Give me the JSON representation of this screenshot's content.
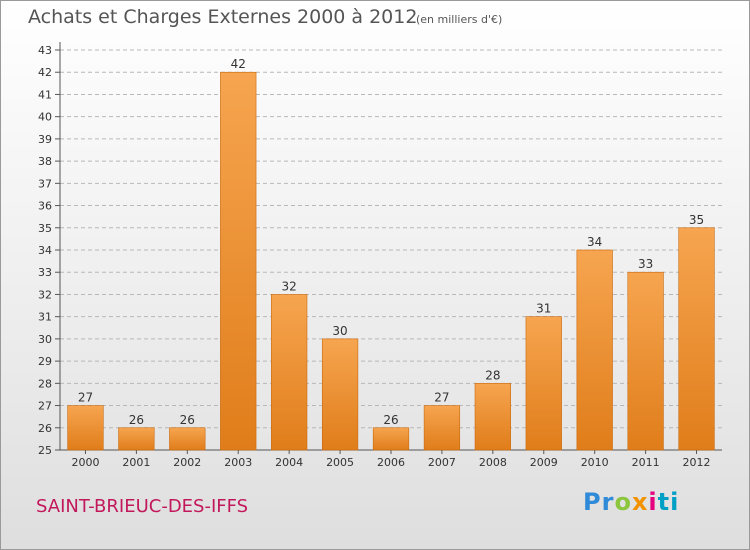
{
  "title": "Achats et Charges Externes 2000 à 2012",
  "unit": "(en milliers d'€)",
  "commune": "SAINT-BRIEUC-DES-IFFS",
  "brand": {
    "parts": [
      "Pr",
      "o",
      "x",
      "i",
      "ti"
    ]
  },
  "colors": {
    "bar_light": "#f6a550",
    "bar_dark": "#e07d1a",
    "bar_edge": "#c96a10",
    "commune_text": "#c2185b"
  },
  "chart_data": {
    "type": "bar",
    "title": "Achats et Charges Externes 2000 à 2012",
    "subtitle": "(en milliers d'€)",
    "xlabel": "",
    "ylabel": "",
    "categories": [
      "2000",
      "2001",
      "2002",
      "2003",
      "2004",
      "2005",
      "2006",
      "2007",
      "2008",
      "2009",
      "2010",
      "2011",
      "2012"
    ],
    "values": [
      27,
      26,
      26,
      42,
      32,
      30,
      26,
      27,
      28,
      31,
      34,
      33,
      35
    ],
    "ylim": [
      25,
      43
    ],
    "yticks": [
      25,
      26,
      27,
      28,
      29,
      30,
      31,
      32,
      33,
      34,
      35,
      36,
      37,
      38,
      39,
      40,
      41,
      42,
      43
    ],
    "grid": "horizontal-dashed",
    "legend": "none"
  }
}
